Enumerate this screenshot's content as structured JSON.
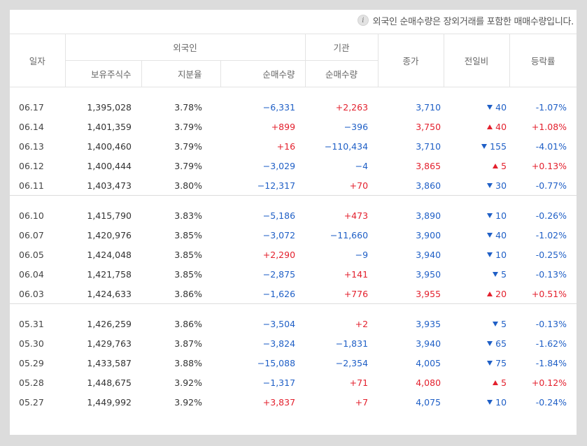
{
  "notice": {
    "icon": "info-icon",
    "text": "외국인 순매수량은 장외거래를 포함한 매매수량입니다."
  },
  "headers": {
    "date": "일자",
    "foreign_group": "외국인",
    "institution_group": "기관",
    "holdings": "보유주식수",
    "share_ratio": "지분율",
    "foreign_net": "순매수량",
    "inst_net": "순매수량",
    "close": "종가",
    "change": "전일비",
    "rate": "등락률"
  },
  "colors": {
    "up": "#e3202d",
    "down": "#1f5fc6"
  },
  "groups": [
    [
      {
        "date": "06.17",
        "holdings": "1,395,028",
        "ratio": "3.78%",
        "fnet": "−6,331",
        "fdir": "down",
        "inet": "+2,263",
        "idir": "up",
        "close": "3,710",
        "cdir": "down",
        "change": "40",
        "chdir": "down",
        "rate": "-1.07%",
        "rdir": "down"
      },
      {
        "date": "06.14",
        "holdings": "1,401,359",
        "ratio": "3.79%",
        "fnet": "+899",
        "fdir": "up",
        "inet": "−396",
        "idir": "down",
        "close": "3,750",
        "cdir": "up",
        "change": "40",
        "chdir": "up",
        "rate": "+1.08%",
        "rdir": "up"
      },
      {
        "date": "06.13",
        "holdings": "1,400,460",
        "ratio": "3.79%",
        "fnet": "+16",
        "fdir": "up",
        "inet": "−110,434",
        "idir": "down",
        "close": "3,710",
        "cdir": "down",
        "change": "155",
        "chdir": "down",
        "rate": "-4.01%",
        "rdir": "down"
      },
      {
        "date": "06.12",
        "holdings": "1,400,444",
        "ratio": "3.79%",
        "fnet": "−3,029",
        "fdir": "down",
        "inet": "−4",
        "idir": "down",
        "close": "3,865",
        "cdir": "up",
        "change": "5",
        "chdir": "up",
        "rate": "+0.13%",
        "rdir": "up"
      },
      {
        "date": "06.11",
        "holdings": "1,403,473",
        "ratio": "3.80%",
        "fnet": "−12,317",
        "fdir": "down",
        "inet": "+70",
        "idir": "up",
        "close": "3,860",
        "cdir": "down",
        "change": "30",
        "chdir": "down",
        "rate": "-0.77%",
        "rdir": "down"
      }
    ],
    [
      {
        "date": "06.10",
        "holdings": "1,415,790",
        "ratio": "3.83%",
        "fnet": "−5,186",
        "fdir": "down",
        "inet": "+473",
        "idir": "up",
        "close": "3,890",
        "cdir": "down",
        "change": "10",
        "chdir": "down",
        "rate": "-0.26%",
        "rdir": "down"
      },
      {
        "date": "06.07",
        "holdings": "1,420,976",
        "ratio": "3.85%",
        "fnet": "−3,072",
        "fdir": "down",
        "inet": "−11,660",
        "idir": "down",
        "close": "3,900",
        "cdir": "down",
        "change": "40",
        "chdir": "down",
        "rate": "-1.02%",
        "rdir": "down"
      },
      {
        "date": "06.05",
        "holdings": "1,424,048",
        "ratio": "3.85%",
        "fnet": "+2,290",
        "fdir": "up",
        "inet": "−9",
        "idir": "down",
        "close": "3,940",
        "cdir": "down",
        "change": "10",
        "chdir": "down",
        "rate": "-0.25%",
        "rdir": "down"
      },
      {
        "date": "06.04",
        "holdings": "1,421,758",
        "ratio": "3.85%",
        "fnet": "−2,875",
        "fdir": "down",
        "inet": "+141",
        "idir": "up",
        "close": "3,950",
        "cdir": "down",
        "change": "5",
        "chdir": "down",
        "rate": "-0.13%",
        "rdir": "down"
      },
      {
        "date": "06.03",
        "holdings": "1,424,633",
        "ratio": "3.86%",
        "fnet": "−1,626",
        "fdir": "down",
        "inet": "+776",
        "idir": "up",
        "close": "3,955",
        "cdir": "up",
        "change": "20",
        "chdir": "up",
        "rate": "+0.51%",
        "rdir": "up"
      }
    ],
    [
      {
        "date": "05.31",
        "holdings": "1,426,259",
        "ratio": "3.86%",
        "fnet": "−3,504",
        "fdir": "down",
        "inet": "+2",
        "idir": "up",
        "close": "3,935",
        "cdir": "down",
        "change": "5",
        "chdir": "down",
        "rate": "-0.13%",
        "rdir": "down"
      },
      {
        "date": "05.30",
        "holdings": "1,429,763",
        "ratio": "3.87%",
        "fnet": "−3,824",
        "fdir": "down",
        "inet": "−1,831",
        "idir": "down",
        "close": "3,940",
        "cdir": "down",
        "change": "65",
        "chdir": "down",
        "rate": "-1.62%",
        "rdir": "down"
      },
      {
        "date": "05.29",
        "holdings": "1,433,587",
        "ratio": "3.88%",
        "fnet": "−15,088",
        "fdir": "down",
        "inet": "−2,354",
        "idir": "down",
        "close": "4,005",
        "cdir": "down",
        "change": "75",
        "chdir": "down",
        "rate": "-1.84%",
        "rdir": "down"
      },
      {
        "date": "05.28",
        "holdings": "1,448,675",
        "ratio": "3.92%",
        "fnet": "−1,317",
        "fdir": "down",
        "inet": "+71",
        "idir": "up",
        "close": "4,080",
        "cdir": "up",
        "change": "5",
        "chdir": "up",
        "rate": "+0.12%",
        "rdir": "up"
      },
      {
        "date": "05.27",
        "holdings": "1,449,992",
        "ratio": "3.92%",
        "fnet": "+3,837",
        "fdir": "up",
        "inet": "+7",
        "idir": "up",
        "close": "4,075",
        "cdir": "down",
        "change": "10",
        "chdir": "down",
        "rate": "-0.24%",
        "rdir": "down"
      }
    ]
  ]
}
